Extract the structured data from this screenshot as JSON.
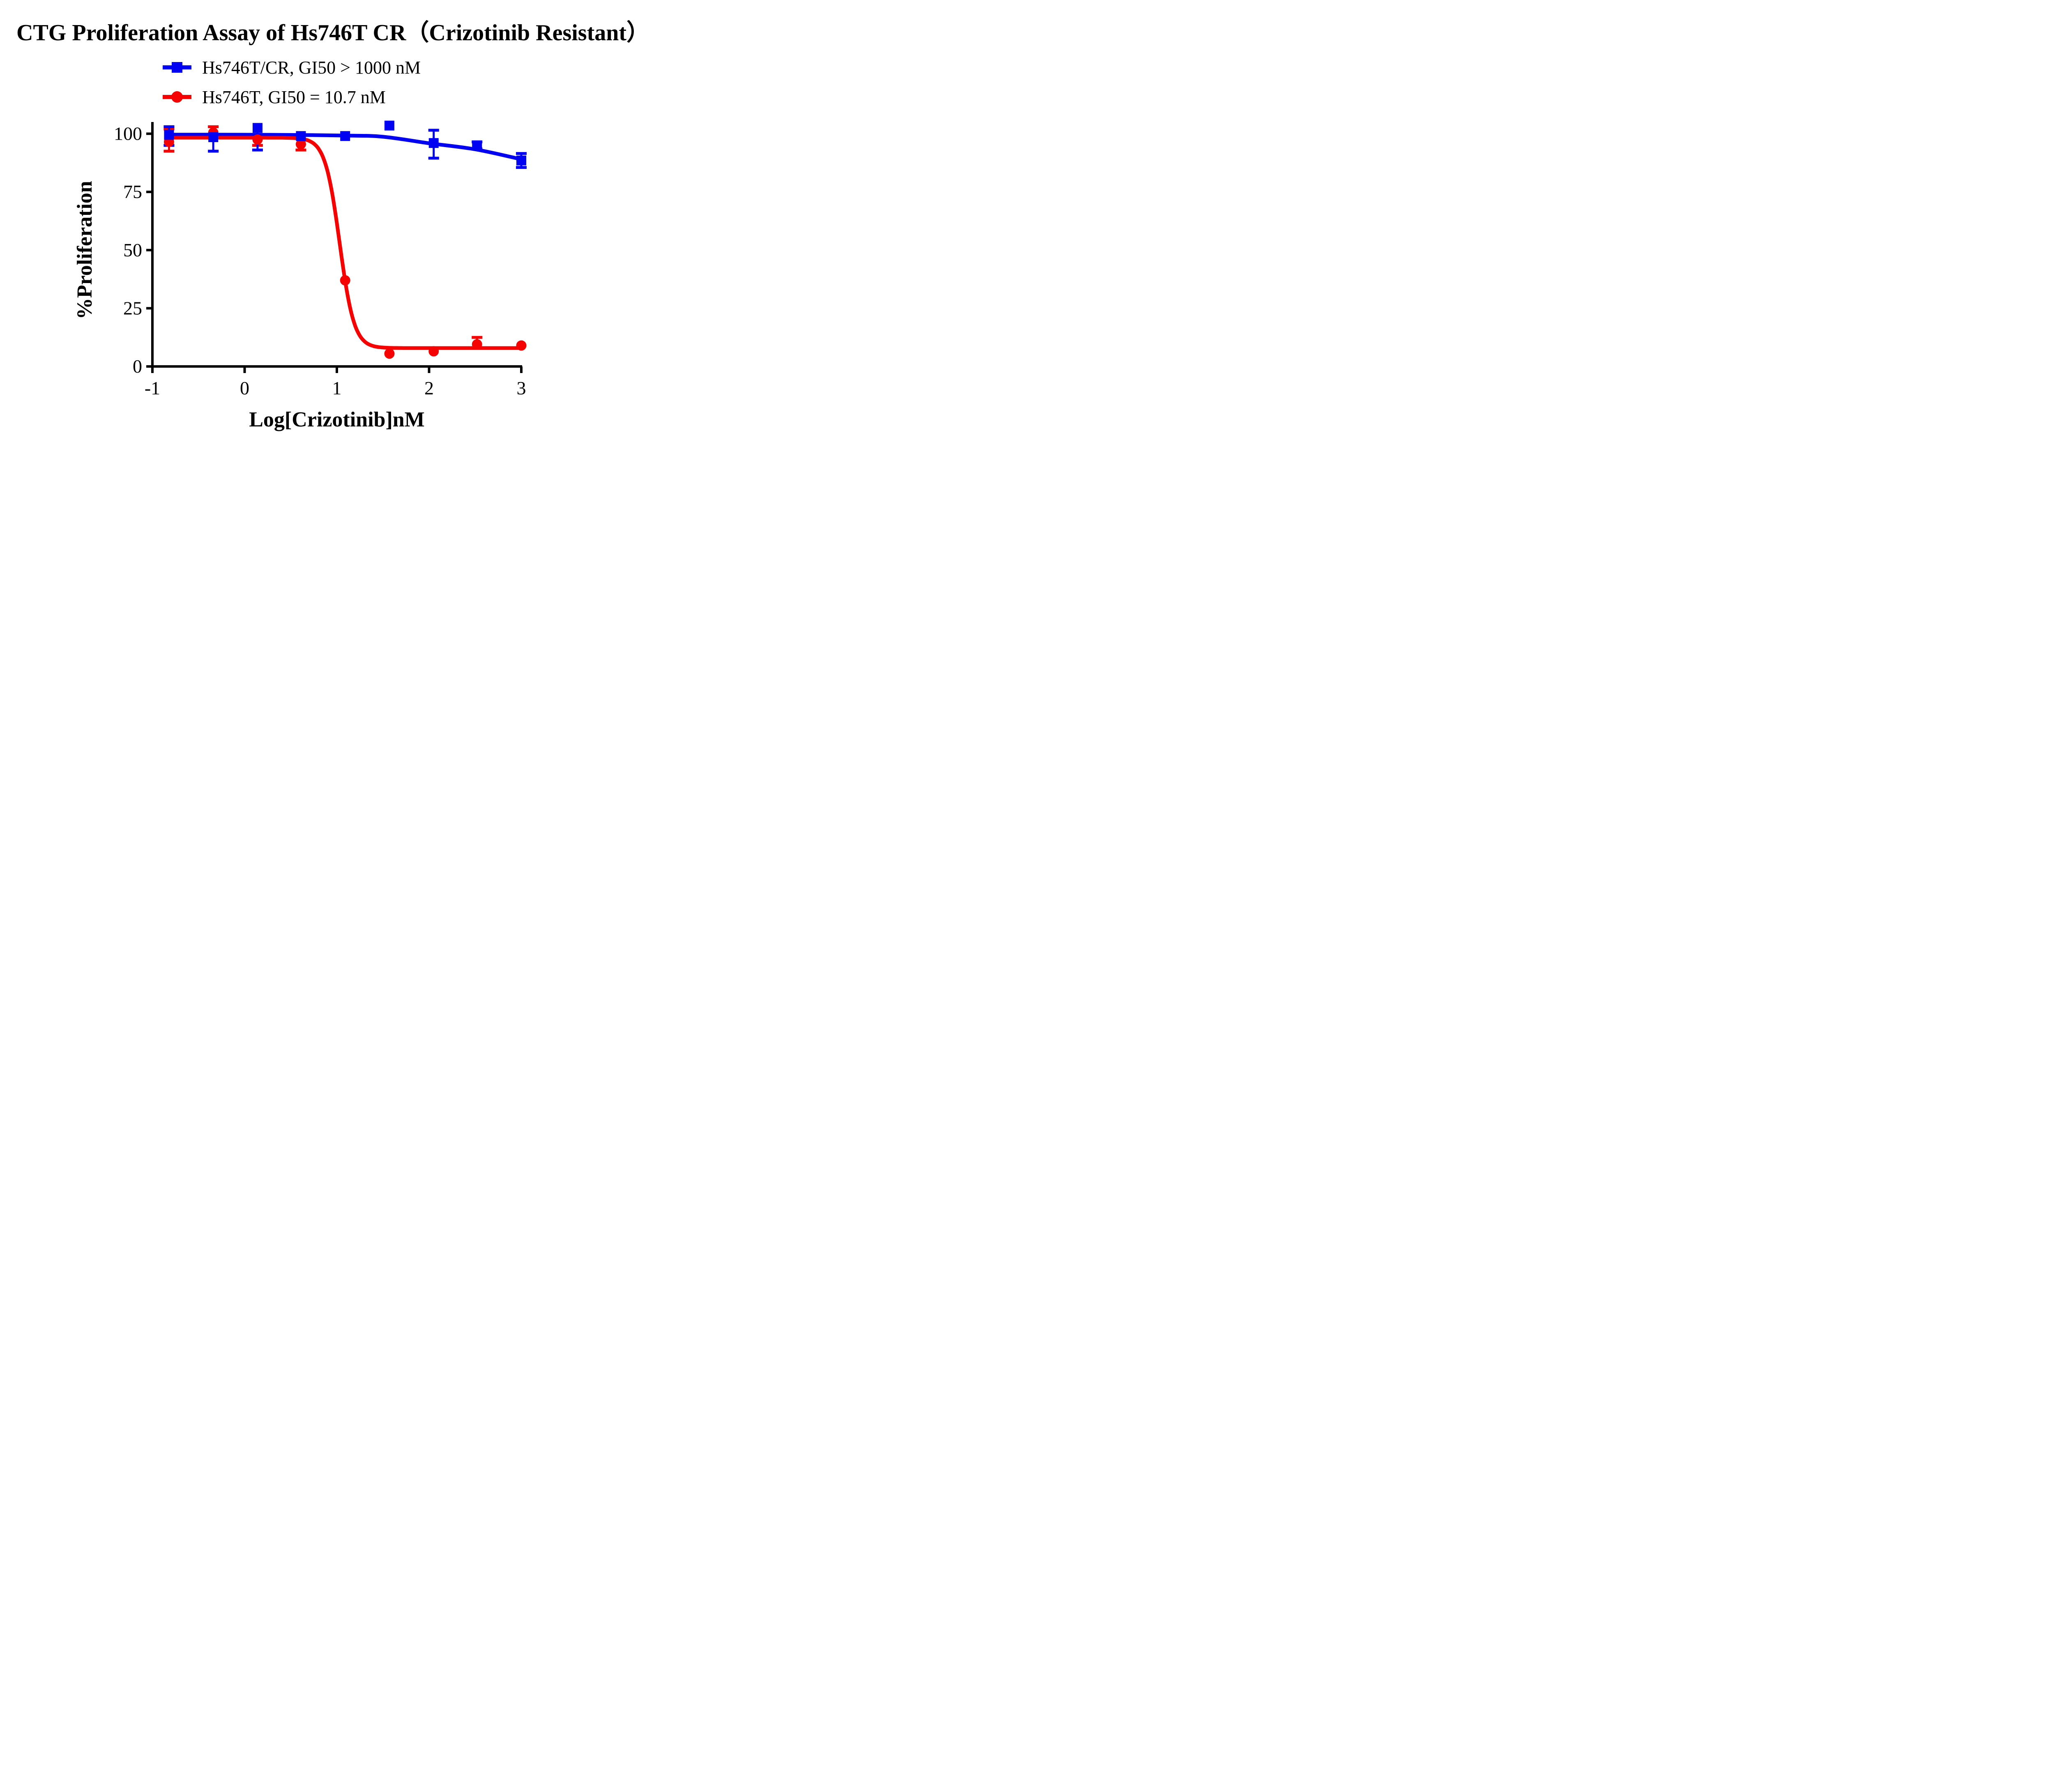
{
  "title": "CTG Proliferation Assay of Hs746T CR（Crizotinib Resistant）",
  "legend": [
    {
      "label": "Hs746T/CR, GI50 > 1000 nM",
      "color": "#0202F2",
      "marker": "square"
    },
    {
      "label": "Hs746T, GI50 = 10.7 nM",
      "color": "#F50202",
      "marker": "circle"
    }
  ],
  "chart_data": {
    "type": "scatter",
    "title": "CTG Proliferation Assay of Hs746T CR（Crizotinib Resistant）",
    "xlabel": "Log[Crizotinib]nM",
    "ylabel": "%Proliferation",
    "xlim": [
      -1,
      3
    ],
    "ylim": [
      0,
      100
    ],
    "xticks": [
      "-1",
      "0",
      "1",
      "2",
      "3"
    ],
    "xtick_values": [
      -1,
      0,
      1,
      2,
      3
    ],
    "yticks": [
      "0",
      "25",
      "50",
      "75",
      "100"
    ],
    "ytick_values": [
      0,
      25,
      50,
      75,
      100
    ],
    "grid": false,
    "legend_position": "top-center",
    "series": [
      {
        "name": "Hs746T/CR, GI50 > 1000 nM",
        "color": "#0202F2",
        "marker": "square",
        "x": [
          -0.82,
          -0.34,
          0.14,
          0.61,
          1.09,
          1.57,
          2.05,
          2.52,
          3.0
        ],
        "y": [
          99.5,
          98.5,
          102.5,
          99.0,
          99.0,
          103.5,
          96.0,
          95.0,
          88.5
        ],
        "err_up": [
          3.5,
          0,
          0,
          0,
          0,
          0,
          5.5,
          1.5,
          3.0
        ],
        "err_dn": [
          4.5,
          6.0,
          9.5,
          0,
          0,
          0,
          6.5,
          1.5,
          3.0
        ],
        "fit_curve": {
          "type": "points",
          "pts": [
            [
              -0.85,
              99.6
            ],
            [
              -0.4,
              99.6
            ],
            [
              0.1,
              99.55
            ],
            [
              0.6,
              99.45
            ],
            [
              1.1,
              99.2
            ],
            [
              1.5,
              98.7
            ],
            [
              2.0,
              95.9
            ],
            [
              2.5,
              93.3
            ],
            [
              3.0,
              89.0
            ]
          ]
        }
      },
      {
        "name": "Hs746T, GI50 = 10.7 nM",
        "color": "#F50202",
        "marker": "circle",
        "x": [
          -0.82,
          -0.34,
          0.14,
          0.61,
          1.09,
          1.57,
          2.05,
          2.52,
          3.0
        ],
        "y": [
          96.5,
          100.5,
          97.5,
          95.5,
          37.0,
          5.5,
          6.5,
          9.5,
          9.0
        ],
        "err_up": [
          5.5,
          2.5,
          0,
          0,
          0,
          0,
          0,
          3.0,
          0
        ],
        "err_dn": [
          4.0,
          0,
          2.5,
          2.5,
          0,
          0,
          0,
          0,
          0
        ],
        "fit_curve": {
          "type": "logistic",
          "top": 98.3,
          "bottom": 7.9,
          "log_gi50": 1.03,
          "hill": 5.5,
          "x_start": -0.85,
          "x_end": 3.0
        }
      }
    ]
  }
}
